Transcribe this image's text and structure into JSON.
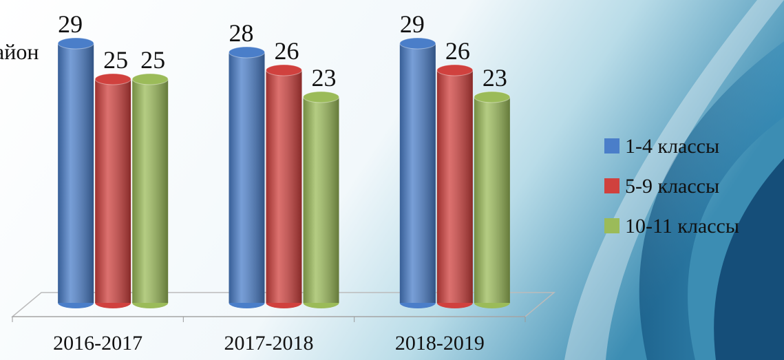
{
  "chart_data": {
    "type": "bar",
    "annotation": "айон",
    "categories": [
      "2016-2017",
      "2017-2018",
      "2018-2019"
    ],
    "series": [
      {
        "name": "1-4 классы",
        "color": "#4a7ec9",
        "values": [
          29,
          28,
          29
        ]
      },
      {
        "name": "5-9 классы",
        "color": "#d0413e",
        "values": [
          25,
          26,
          26
        ]
      },
      {
        "name": "10-11 классы",
        "color": "#9bbb59",
        "values": [
          25,
          23,
          23
        ]
      }
    ],
    "ylim": [
      0,
      30
    ]
  }
}
